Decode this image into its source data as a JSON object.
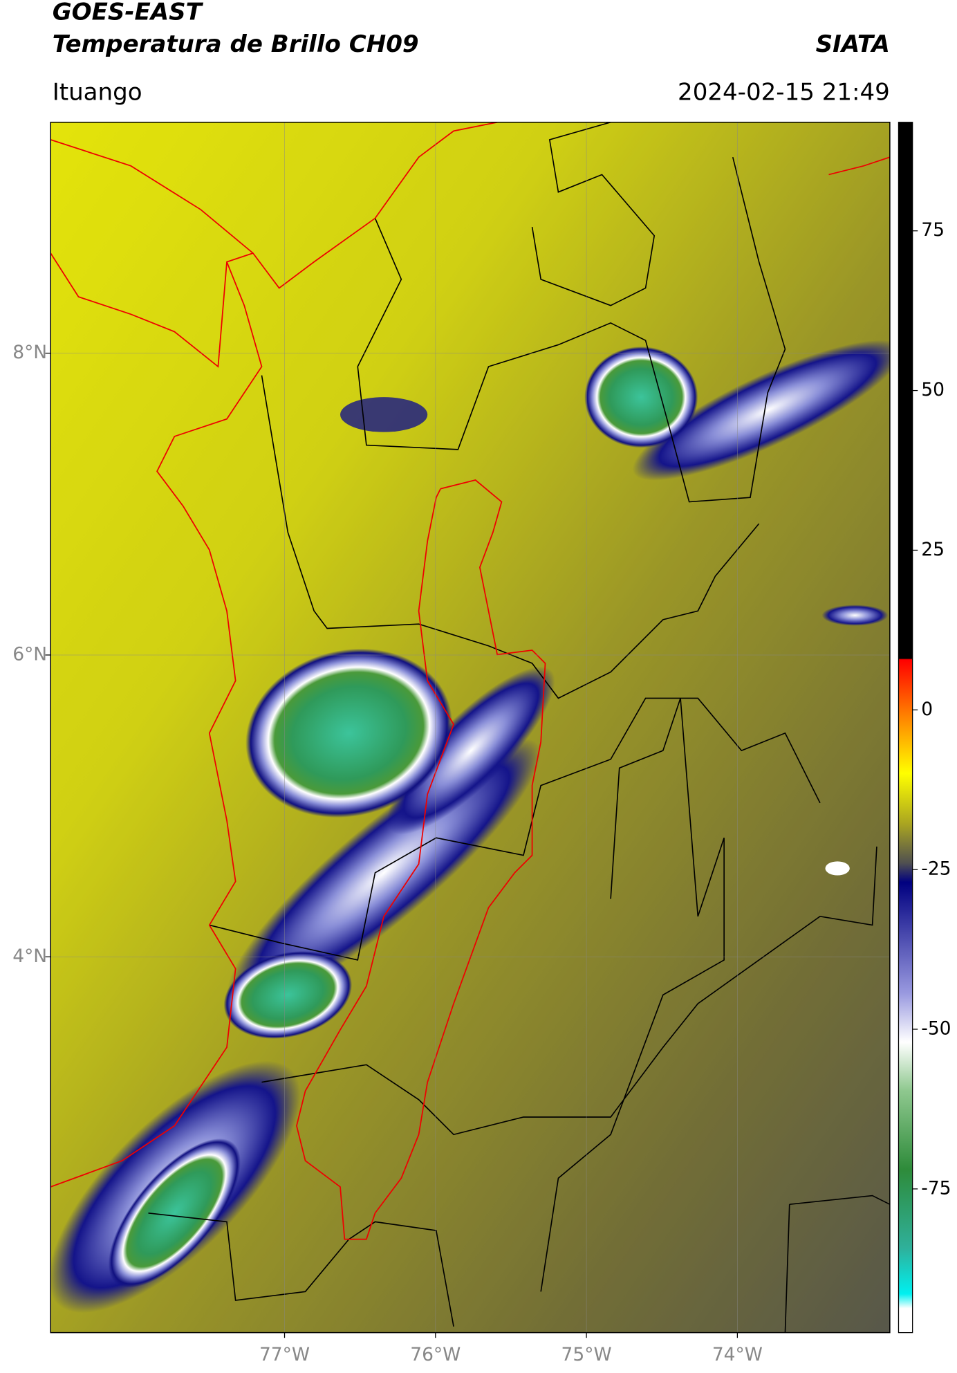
{
  "header": {
    "title": "GOES-EAST",
    "subtitle": "Temperatura de Brillo CH09",
    "source": "SIATA",
    "location": "Ituango",
    "timestamp": "2024-02-15 21:49"
  },
  "map": {
    "xlim": [
      -78.55,
      -72.99
    ],
    "ylim": [
      1.51,
      9.53
    ],
    "xticks": [
      {
        "value": -77,
        "label": "77°W"
      },
      {
        "value": -76,
        "label": "76°W"
      },
      {
        "value": -75,
        "label": "75°W"
      },
      {
        "value": -74,
        "label": "74°W"
      }
    ],
    "yticks": [
      {
        "value": 8,
        "label": "8°N"
      },
      {
        "value": 6,
        "label": "6°N"
      },
      {
        "value": 4,
        "label": "4°N"
      }
    ]
  },
  "colorbar": {
    "lim": [
      -97.5,
      92
    ],
    "ticks": [
      75,
      50,
      25,
      0,
      -25,
      -50,
      -75
    ]
  }
}
